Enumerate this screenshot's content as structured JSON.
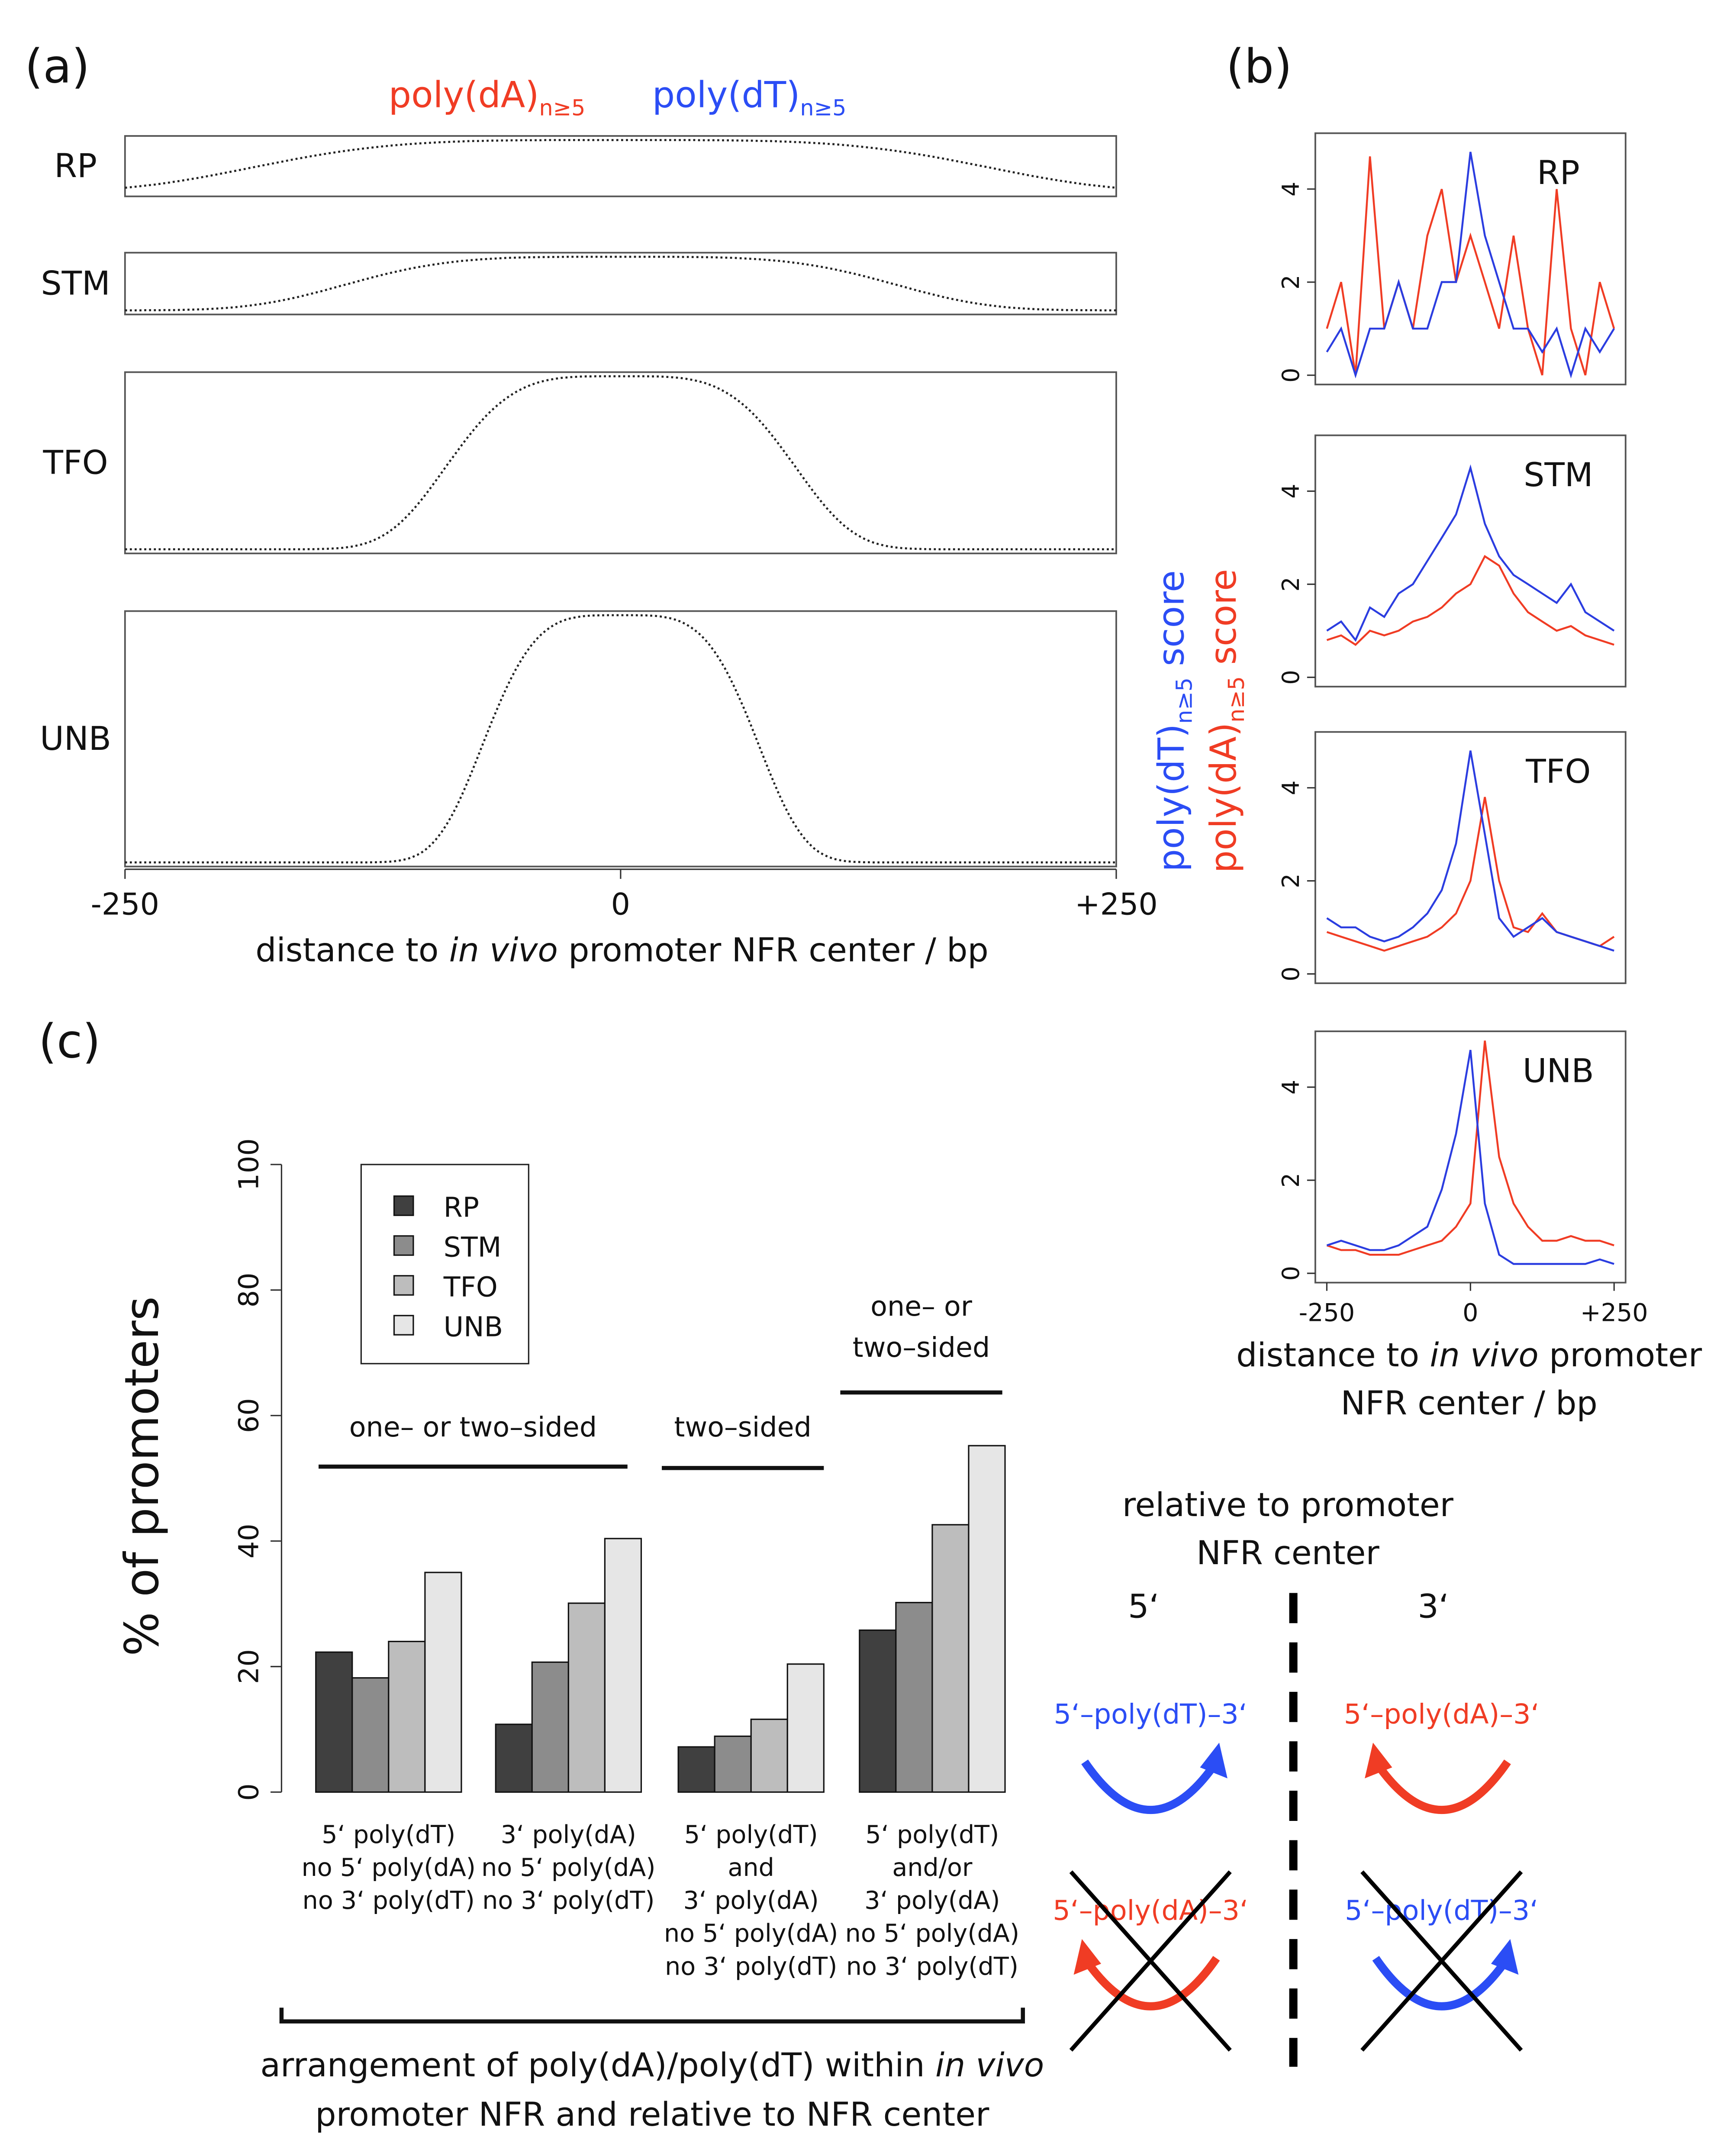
{
  "panel_labels": [
    "(a)",
    "(b)",
    "(c)"
  ],
  "chart_data": [
    {
      "type": "heatmap",
      "series": [
        {
          "name": "poly(dA)",
          "subscript": "n≥5",
          "color": "#f03c24"
        },
        {
          "name": "poly(dT)",
          "subscript": "n≥5",
          "color": "#2b4df5"
        }
      ],
      "rows": [
        "RP",
        "STM",
        "TFO",
        "UNB"
      ],
      "xlim": [
        -250,
        250
      ],
      "xticks": [
        -250,
        0,
        {
          "value": 250,
          "label": "+250"
        }
      ],
      "xlabel": [
        "distance to ",
        "in vivo",
        " promoter NFR center / bp"
      ]
    },
    {
      "type": "line",
      "title": "RP",
      "x": [
        -250,
        -225,
        -200,
        -175,
        -150,
        -125,
        -100,
        -75,
        -50,
        -25,
        0,
        25,
        50,
        75,
        100,
        125,
        150,
        175,
        200,
        225,
        250
      ],
      "xlim": [
        -270,
        270
      ],
      "ylim": [
        -0.2,
        5.2
      ],
      "yticks": [
        0,
        2,
        4
      ],
      "ylabel": [
        {
          "text": "poly(dT)",
          "subscript": "n≥5",
          "suffix": " score",
          "color": "#2b4df5"
        },
        {
          "text": "poly(dA)",
          "subscript": "n≥5",
          "suffix": " score",
          "color": "#f03c24"
        }
      ],
      "series": [
        {
          "color": "#f03c24",
          "values": [
            1,
            2,
            0,
            4.7,
            1,
            2,
            1,
            3,
            4,
            2,
            3,
            2,
            1,
            3,
            1,
            0,
            4,
            1,
            0,
            2,
            1
          ]
        },
        {
          "color": "#2b3de0",
          "values": [
            0.5,
            1,
            0,
            1,
            1,
            2,
            1,
            1,
            2,
            2,
            4.8,
            3,
            2,
            1,
            1,
            0.5,
            1,
            0,
            1,
            0.5,
            1
          ]
        }
      ]
    },
    {
      "type": "line",
      "title": "STM",
      "x": [
        -250,
        -225,
        -200,
        -175,
        -150,
        -125,
        -100,
        -75,
        -50,
        -25,
        0,
        25,
        50,
        75,
        100,
        125,
        150,
        175,
        200,
        225,
        250
      ],
      "xlim": [
        -270,
        270
      ],
      "ylim": [
        -0.2,
        5.2
      ],
      "yticks": [
        0,
        2,
        4
      ],
      "series": [
        {
          "color": "#f03c24",
          "values": [
            0.8,
            0.9,
            0.7,
            1,
            0.9,
            1,
            1.2,
            1.3,
            1.5,
            1.8,
            2,
            2.6,
            2.4,
            1.8,
            1.4,
            1.2,
            1,
            1.1,
            0.9,
            0.8,
            0.7
          ]
        },
        {
          "color": "#2b3de0",
          "values": [
            1,
            1.2,
            0.8,
            1.5,
            1.3,
            1.8,
            2,
            2.5,
            3,
            3.5,
            4.5,
            3.3,
            2.6,
            2.2,
            2,
            1.8,
            1.6,
            2,
            1.4,
            1.2,
            1
          ]
        }
      ]
    },
    {
      "type": "line",
      "title": "TFO",
      "x": [
        -250,
        -225,
        -200,
        -175,
        -150,
        -125,
        -100,
        -75,
        -50,
        -25,
        0,
        25,
        50,
        75,
        100,
        125,
        150,
        175,
        200,
        225,
        250
      ],
      "xlim": [
        -270,
        270
      ],
      "ylim": [
        -0.2,
        5.2
      ],
      "yticks": [
        0,
        2,
        4
      ],
      "series": [
        {
          "color": "#f03c24",
          "values": [
            0.9,
            0.8,
            0.7,
            0.6,
            0.5,
            0.6,
            0.7,
            0.8,
            1,
            1.3,
            2,
            3.8,
            2,
            1,
            0.9,
            1.3,
            0.9,
            0.8,
            0.7,
            0.6,
            0.8
          ]
        },
        {
          "color": "#2b3de0",
          "values": [
            1.2,
            1,
            1,
            0.8,
            0.7,
            0.8,
            1,
            1.3,
            1.8,
            2.8,
            4.8,
            3,
            1.2,
            0.8,
            1,
            1.2,
            0.9,
            0.8,
            0.7,
            0.6,
            0.5
          ]
        }
      ]
    },
    {
      "type": "line",
      "title": "UNB",
      "x": [
        -250,
        -225,
        -200,
        -175,
        -150,
        -125,
        -100,
        -75,
        -50,
        -25,
        0,
        25,
        50,
        75,
        100,
        125,
        150,
        175,
        200,
        225,
        250
      ],
      "xlim": [
        -270,
        270
      ],
      "ylim": [
        -0.2,
        5.2
      ],
      "yticks": [
        0,
        2,
        4
      ],
      "xticks": [
        -250,
        0,
        {
          "value": 250,
          "label": "+250"
        }
      ],
      "xlabel": [
        [
          "distance to ",
          "in vivo",
          " promoter"
        ],
        [
          "NFR center / bp"
        ]
      ],
      "series": [
        {
          "color": "#f03c24",
          "values": [
            0.6,
            0.5,
            0.5,
            0.4,
            0.4,
            0.4,
            0.5,
            0.6,
            0.7,
            1,
            1.5,
            5,
            2.5,
            1.5,
            1,
            0.7,
            0.7,
            0.8,
            0.7,
            0.7,
            0.6
          ]
        },
        {
          "color": "#2b3de0",
          "values": [
            0.6,
            0.7,
            0.6,
            0.5,
            0.5,
            0.6,
            0.8,
            1,
            1.8,
            3,
            4.8,
            1.5,
            0.4,
            0.2,
            0.2,
            0.2,
            0.2,
            0.2,
            0.2,
            0.3,
            0.2
          ]
        }
      ]
    },
    {
      "type": "bar",
      "categories": [
        [
          "5‘ poly(dT)",
          "no 5‘ poly(dA)",
          "no 3‘ poly(dT)"
        ],
        [
          "3‘ poly(dA)",
          "no 5‘ poly(dA)",
          "no 3‘ poly(dT)"
        ],
        [
          "5‘ poly(dT)",
          "and",
          "3‘ poly(dA)",
          "no 5‘ poly(dA)",
          "no 3‘ poly(dT)"
        ],
        [
          "5‘ poly(dT)",
          "and/or",
          "3‘ poly(dA)",
          "no 5‘ poly(dA)",
          "no 3‘ poly(dT)"
        ]
      ],
      "series": [
        {
          "name": "RP",
          "color": "#404040",
          "values": [
            22.3,
            10.8,
            7.2,
            25.8
          ]
        },
        {
          "name": "STM",
          "color": "#8c8c8c",
          "values": [
            18.2,
            20.7,
            8.9,
            30.2
          ]
        },
        {
          "name": "TFO",
          "color": "#bdbdbd",
          "values": [
            24,
            30.1,
            11.6,
            42.6
          ]
        },
        {
          "name": "UNB",
          "color": "#e6e6e6",
          "values": [
            35,
            40.4,
            20.4,
            55.2
          ]
        }
      ],
      "ylim": [
        0,
        100
      ],
      "yticks": [
        0,
        20,
        40,
        60,
        80,
        100
      ],
      "ylabel": "% of promoters",
      "annotations": [
        [
          "one– or two–sided"
        ],
        [
          "two–sided"
        ],
        [
          "one– or",
          "two–sided"
        ]
      ],
      "xlabel": [
        [
          "arrangement of poly(dA)/poly(dT) within ",
          "in vivo"
        ],
        [
          "promoter NFR and relative to NFR center"
        ]
      ]
    }
  ],
  "diagram": {
    "title": [
      "relative to promoter",
      "NFR center"
    ],
    "sides": [
      "5‘",
      "3‘"
    ],
    "labels": [
      {
        "text": "5‘–poly(dT)–3‘",
        "color": "#2b4df5"
      },
      {
        "text": "5‘–poly(dA)–3‘",
        "color": "#f03c24"
      },
      {
        "text": "5‘–poly(dA)–3‘",
        "color": "#f03c24"
      },
      {
        "text": "5‘–poly(dT)–3‘",
        "color": "#2b4df5"
      }
    ]
  }
}
